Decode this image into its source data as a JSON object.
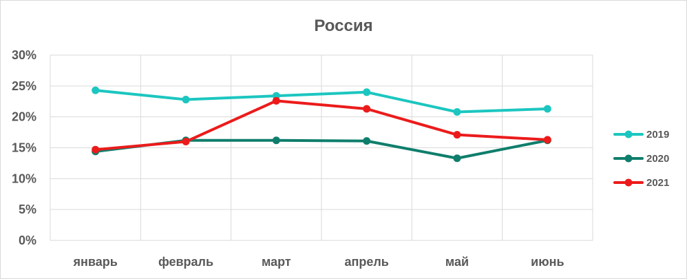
{
  "chart_data": {
    "type": "line",
    "title": "Россия",
    "categories": [
      "январь",
      "февраль",
      "март",
      "апрель",
      "май",
      "июнь"
    ],
    "series": [
      {
        "name": "2019",
        "values": [
          24.3,
          22.8,
          23.4,
          24.0,
          20.8,
          21.3
        ],
        "color": "#1cc6c0"
      },
      {
        "name": "2020",
        "values": [
          14.4,
          16.2,
          16.2,
          16.1,
          13.3,
          16.2
        ],
        "color": "#0f7e6c"
      },
      {
        "name": "2021",
        "values": [
          14.7,
          16.0,
          22.6,
          21.3,
          17.1,
          16.3
        ],
        "color": "#ec1b1b"
      }
    ],
    "yticks": [
      "0%",
      "5%",
      "10%",
      "15%",
      "20%",
      "25%",
      "30%"
    ],
    "ylim": [
      0,
      30
    ],
    "grid": true,
    "legend_position": "right"
  }
}
